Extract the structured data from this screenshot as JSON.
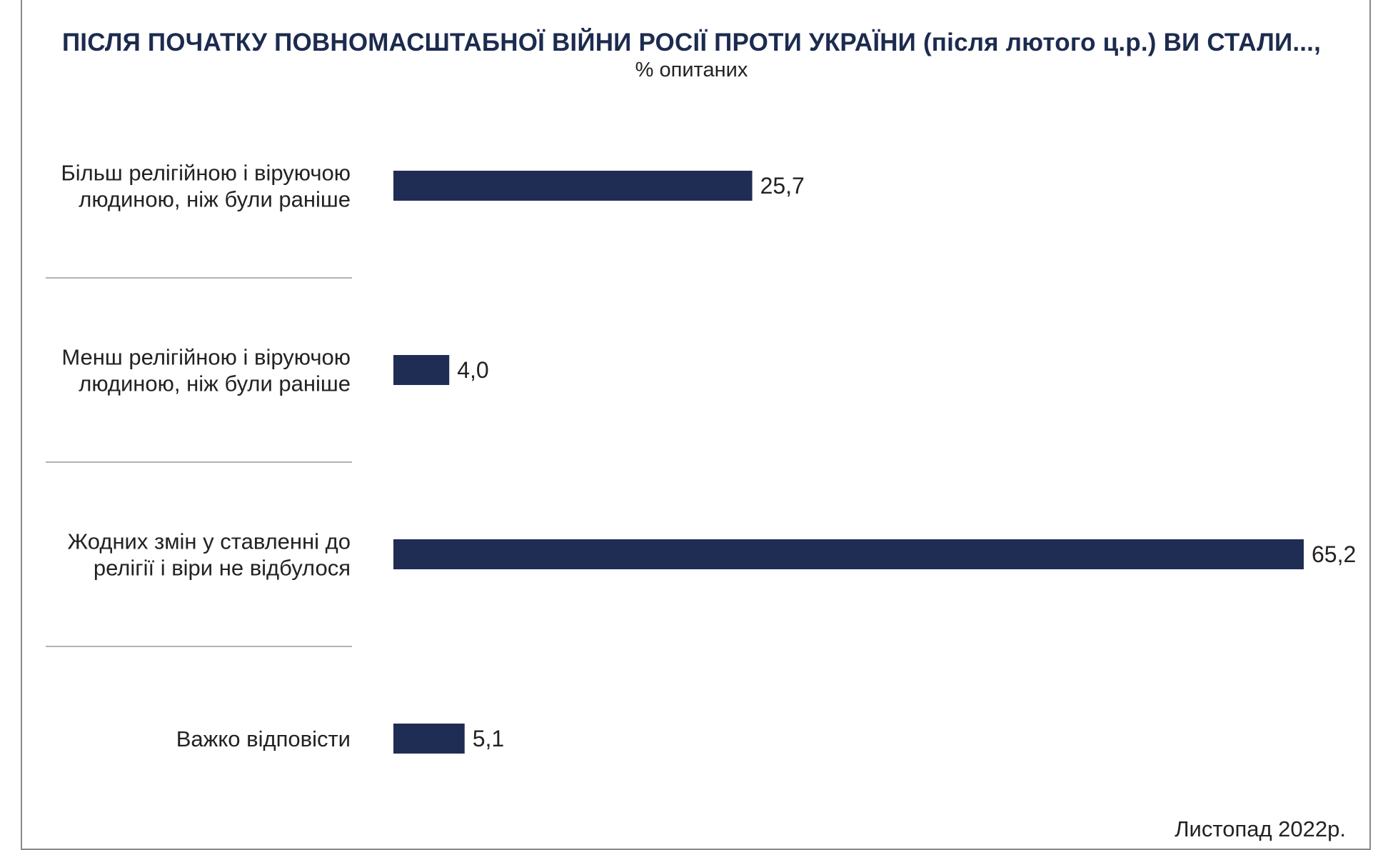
{
  "header": {
    "title": "ПІСЛЯ ПОЧАТКУ ПОВНОМАСШТАБНОЇ ВІЙНИ РОСІЇ ПРОТИ УКРАЇНИ (після лютого ц.р.) ВИ СТАЛИ...,",
    "subtitle": "% опитаних"
  },
  "footnote": "Листопад 2022р.",
  "colors": {
    "bar": "#1f2d55",
    "title": "#1c2b4f",
    "separator": "#9a9a9a"
  },
  "chart_data": {
    "type": "bar",
    "orientation": "horizontal",
    "title": "ПІСЛЯ ПОЧАТКУ ПОВНОМАСШТАБНОЇ ВІЙНИ РОСІЇ ПРОТИ УКРАЇНИ (після лютого ц.р.) ВИ СТАЛИ...,",
    "subtitle": "% опитаних",
    "categories": [
      [
        "Більш релігійною і віруючою",
        "людиною, ніж були раніше"
      ],
      [
        "Менш релігійною і віруючою",
        "людиною, ніж були раніше"
      ],
      [
        "Жодних змін у ставленні до",
        "релігії і віри не відбулося"
      ],
      [
        "Важко відповісти"
      ]
    ],
    "values": [
      25.7,
      4.0,
      65.2,
      5.1
    ],
    "value_labels": [
      "25,7",
      "4,0",
      "65,2",
      "5,1"
    ],
    "xlim": [
      0,
      65.2
    ],
    "grid": false,
    "legend": "none"
  }
}
